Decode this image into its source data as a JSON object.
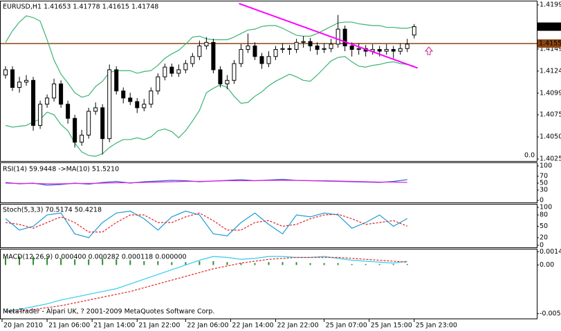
{
  "chart_data": [
    {
      "type": "candlestick",
      "title": "EURUSD,H1  1.41653 1.41778 1.41615 1.41748",
      "xlim": [
        -0.8,
        76.7
      ],
      "xticks": [
        {
          "value": -0.5,
          "label": "20 Jan 2010"
        },
        {
          "value": 6,
          "label": "21 Jan 06:00"
        },
        {
          "value": 12.5,
          "label": "21 Jan 14:00"
        },
        {
          "value": 19,
          "label": "21 Jan 22:00"
        },
        {
          "value": 26,
          "label": "22 Jan 06:00"
        },
        {
          "value": 32.5,
          "label": "22 Jan 14:00"
        },
        {
          "value": 39,
          "label": "22 Jan 22:00"
        },
        {
          "value": 46,
          "label": "25 Jan 07:00"
        },
        {
          "value": 52.5,
          "label": "25 Jan 15:00"
        },
        {
          "value": 59,
          "label": "25 Jan 23:00"
        }
      ],
      "ylim": [
        1.40227,
        1.42034
      ],
      "yticks": [
        1.41995,
        1.41495,
        1.41245,
        1.40995,
        {
          "value": 1.4075,
          "label": "1.40750"
        },
        {
          "value": 1.405,
          "label": "1.40500"
        },
        {
          "value": 1.4025,
          "label": "1.40250"
        }
      ],
      "open": [
        1.412,
        1.4126,
        1.4106,
        1.4112,
        1.4114,
        1.4063,
        1.4087,
        1.4094,
        1.411,
        1.4087,
        1.4071,
        1.4044,
        1.4052,
        1.4079,
        1.4083,
        1.4048,
        1.4126,
        1.4102,
        1.4094,
        1.409,
        1.4083,
        1.4087,
        1.4102,
        1.4118,
        1.4129,
        1.4122,
        1.4126,
        1.4133,
        1.4141,
        1.4153,
        1.4157,
        1.4126,
        1.411,
        1.4114,
        1.4133,
        1.4149,
        1.4153,
        1.4141,
        1.4133,
        1.4141,
        1.4149,
        1.415,
        1.4149,
        1.4157,
        1.4158,
        1.4153,
        1.4149,
        1.415,
        1.4155,
        1.4172,
        1.4153,
        1.4149,
        1.415,
        1.4147,
        1.4149,
        1.4147,
        1.4149,
        1.4147,
        1.415,
        1.41653
      ],
      "high": [
        1.413,
        1.413,
        1.4118,
        1.412,
        1.4118,
        1.4091,
        1.4098,
        1.4116,
        1.4114,
        1.4091,
        1.4075,
        1.4058,
        1.4083,
        1.4089,
        1.4087,
        1.4132,
        1.413,
        1.4106,
        1.41,
        1.4094,
        1.4093,
        1.4106,
        1.4122,
        1.4133,
        1.4133,
        1.4132,
        1.4137,
        1.4145,
        1.4159,
        1.4163,
        1.4161,
        1.413,
        1.412,
        1.4137,
        1.4155,
        1.4167,
        1.4157,
        1.4145,
        1.4147,
        1.4153,
        1.4156,
        1.4154,
        1.4161,
        1.4164,
        1.4162,
        1.4157,
        1.4156,
        1.4161,
        1.4188,
        1.4176,
        1.4157,
        1.4156,
        1.4154,
        1.4155,
        1.4153,
        1.4155,
        1.4153,
        1.4156,
        1.4161,
        1.41778
      ],
      "low": [
        1.4116,
        1.4102,
        1.41,
        1.4108,
        1.4057,
        1.4059,
        1.4083,
        1.409,
        1.4083,
        1.4065,
        1.4038,
        1.404,
        1.4048,
        1.4075,
        1.403,
        1.4044,
        1.4098,
        1.4088,
        1.4086,
        1.4077,
        1.4079,
        1.4083,
        1.4098,
        1.4114,
        1.4118,
        1.4118,
        1.4122,
        1.4129,
        1.4137,
        1.4149,
        1.4122,
        1.4106,
        1.4104,
        1.411,
        1.4129,
        1.4145,
        1.4137,
        1.4127,
        1.4129,
        1.4137,
        1.4145,
        1.4143,
        1.4145,
        1.4151,
        1.4147,
        1.4143,
        1.4145,
        1.4146,
        1.4151,
        1.4147,
        1.4141,
        1.4143,
        1.4141,
        1.4143,
        1.4141,
        1.4143,
        1.4139,
        1.4143,
        1.4146,
        1.41615
      ],
      "close": [
        1.4126,
        1.4106,
        1.4112,
        1.4114,
        1.4063,
        1.4087,
        1.4094,
        1.411,
        1.4087,
        1.4071,
        1.4044,
        1.4052,
        1.4079,
        1.4083,
        1.4048,
        1.4126,
        1.4102,
        1.4094,
        1.409,
        1.4083,
        1.4087,
        1.4102,
        1.4118,
        1.4129,
        1.4122,
        1.4126,
        1.4133,
        1.4141,
        1.4153,
        1.4157,
        1.4126,
        1.411,
        1.4114,
        1.4133,
        1.4149,
        1.4153,
        1.4141,
        1.4133,
        1.4141,
        1.4149,
        1.415,
        1.4149,
        1.4157,
        1.4158,
        1.4153,
        1.4149,
        1.415,
        1.4155,
        1.4172,
        1.4153,
        1.4149,
        1.415,
        1.4147,
        1.4149,
        1.4147,
        1.4149,
        1.4147,
        1.415,
        1.4155,
        1.41748
      ],
      "up_color": "#ffffff",
      "down_color": "#000000",
      "series": [
        {
          "color": "#3cb371",
          "values": [
            1.4157,
            1.417,
            1.418,
            1.4187,
            1.4185,
            1.4181,
            1.416,
            1.4137,
            1.4121,
            1.4111,
            1.41,
            1.4095,
            1.4097,
            1.4107,
            1.4113,
            1.4123,
            1.4125,
            1.4125,
            1.4125,
            1.4122,
            1.4124,
            1.4125,
            1.4131,
            1.4139,
            1.4144,
            1.4148,
            1.4155,
            1.4163,
            1.4164,
            1.4161,
            1.416,
            1.416,
            1.416,
            1.4163,
            1.4167,
            1.4171,
            1.4172,
            1.4175,
            1.4176,
            1.4176,
            1.4173,
            1.4169,
            1.4165,
            1.4164,
            1.4164,
            1.4167,
            1.4171,
            1.4175,
            1.4179,
            1.418,
            1.418,
            1.4178,
            1.4177,
            1.4176,
            1.4176,
            1.4174,
            1.4174,
            1.4173,
            1.4173,
            1.4175
          ]
        },
        {
          "color": "#3cb371",
          "values": [
            1.4063,
            1.4061,
            1.4062,
            1.4063,
            1.4067,
            1.407,
            1.4078,
            1.4075,
            1.4064,
            1.4057,
            1.4043,
            1.4033,
            1.4029,
            1.4028,
            1.4031,
            1.4038,
            1.4043,
            1.4047,
            1.4047,
            1.4049,
            1.4047,
            1.405,
            1.4057,
            1.4059,
            1.4056,
            1.4049,
            1.4057,
            1.4068,
            1.408,
            1.41,
            1.4105,
            1.4109,
            1.4106,
            1.4096,
            1.4088,
            1.4089,
            1.4096,
            1.4101,
            1.4108,
            1.4113,
            1.4117,
            1.4121,
            1.4118,
            1.4114,
            1.4113,
            1.412,
            1.4128,
            1.4136,
            1.414,
            1.4141,
            1.4135,
            1.413,
            1.4129,
            1.4131,
            1.4132,
            1.4134,
            1.4135,
            1.4133,
            1.4132,
            1.413
          ]
        }
      ],
      "trendline": {
        "x": [
          33.7,
          59.5
        ],
        "y": [
          1.4201,
          1.4128
        ],
        "color": "#ff00ff"
      },
      "hline": 1.41557,
      "hline_color": "#8b4513",
      "last_price": 1.41748,
      "volume_label": "0.0"
    },
    {
      "type": "line",
      "title": "RSI(14) 59.9448  ->MA(10) 51.5210",
      "x": [
        0,
        2,
        4,
        6,
        8,
        10,
        12,
        14,
        16,
        18,
        20,
        22,
        24,
        26,
        28,
        30,
        32,
        34,
        36,
        38,
        40,
        42,
        44,
        46,
        48,
        50,
        52,
        54,
        56,
        58
      ],
      "ylim": [
        -8,
        108
      ],
      "yticks": [
        100,
        70,
        50,
        30,
        0
      ],
      "series": [
        {
          "color": "#3366cc",
          "values": [
            52,
            48,
            50,
            44,
            46,
            50,
            47,
            52,
            55,
            50,
            54,
            56,
            58,
            57,
            54,
            56,
            58,
            60,
            57,
            59,
            61,
            58,
            57,
            56,
            55,
            54,
            53,
            52,
            55,
            60
          ]
        },
        {
          "color": "#e020e0",
          "values": [
            50,
            49,
            49,
            48,
            48,
            49,
            49,
            50,
            51,
            51,
            52,
            53,
            54,
            55,
            55,
            56,
            57,
            57,
            57,
            58,
            58,
            58,
            57,
            57,
            56,
            55,
            54,
            53,
            53,
            52
          ]
        }
      ]
    },
    {
      "type": "line",
      "title": "Stoch(5,3,3) 70.5174 50.4218",
      "x": [
        0,
        2,
        4,
        6,
        8,
        10,
        12,
        14,
        16,
        18,
        20,
        22,
        24,
        26,
        28,
        30,
        32,
        34,
        36,
        38,
        40,
        42,
        44,
        46,
        48,
        50,
        52,
        54,
        56,
        58
      ],
      "ylim": [
        -7.4,
        107.4
      ],
      "yticks": [
        100,
        80,
        50,
        20,
        0
      ],
      "series": [
        {
          "color": "#1e9bd7",
          "values": [
            70,
            40,
            50,
            80,
            85,
            30,
            20,
            60,
            85,
            90,
            70,
            40,
            75,
            90,
            80,
            30,
            25,
            60,
            85,
            55,
            30,
            80,
            75,
            85,
            80,
            45,
            60,
            80,
            50,
            70.5
          ]
        },
        {
          "color": "#e02020",
          "dash": true,
          "values": [
            60,
            55,
            45,
            60,
            75,
            60,
            35,
            35,
            60,
            80,
            80,
            60,
            60,
            75,
            85,
            65,
            40,
            40,
            60,
            65,
            50,
            55,
            70,
            80,
            82,
            70,
            55,
            60,
            65,
            50.4
          ]
        }
      ]
    },
    {
      "type": "macd",
      "title": "MACD(12,26,9) 0.000400 0.000282 0.000118 0.000000",
      "x": [
        0,
        2,
        4,
        6,
        8,
        10,
        12,
        14,
        16,
        18,
        20,
        22,
        24,
        26,
        28,
        30,
        32,
        34,
        36,
        38,
        40,
        42,
        44,
        46,
        48,
        50,
        52,
        54,
        56,
        58
      ],
      "ylim": [
        -0.00573,
        0.00164
      ],
      "yticks": [
        {
          "value": 0.0014,
          "label": "0.00140"
        },
        {
          "value": 0,
          "label": "0.00"
        },
        {
          "value": -0.00513,
          "label": "-0.00513"
        }
      ],
      "histogram": {
        "color": "#2e8b2e",
        "values": [
          0.0008,
          0.0009,
          0.0009,
          0.0008,
          0.0007,
          0.0006,
          0.0006,
          0.0007,
          0.0006,
          0.0005,
          0.0004,
          0.0004,
          0.0003,
          0.0003,
          0.0004,
          0.0004,
          0.0003,
          0.0002,
          0.0002,
          0.0003,
          0.0003,
          0.0003,
          0.0002,
          0.0002,
          0.0002,
          0.0001,
          0.0001,
          0.0001,
          0.0001,
          0.0001
        ]
      },
      "series": [
        {
          "color": "#33ccee",
          "values": [
            -0.0049,
            -0.0047,
            -0.0044,
            -0.0041,
            -0.0037,
            -0.0034,
            -0.0031,
            -0.0028,
            -0.0025,
            -0.002,
            -0.0015,
            -0.001,
            -0.0005,
            0,
            0.0005,
            0.0009,
            0.0008,
            0.0006,
            0.0007,
            0.0009,
            0.0009,
            0.0008,
            0.0008,
            0.0009,
            0.0007,
            0.0005,
            0.0004,
            0.0003,
            0.0002,
            0.0004
          ]
        },
        {
          "color": "#e02020",
          "dash": true,
          "values": [
            -0.005,
            -0.0049,
            -0.0047,
            -0.0045,
            -0.0043,
            -0.004,
            -0.0037,
            -0.0034,
            -0.0031,
            -0.0028,
            -0.0024,
            -0.002,
            -0.0016,
            -0.0012,
            -0.0008,
            -0.0004,
            -0.0001,
            0.0002,
            0.0004,
            0.0006,
            0.0007,
            0.0008,
            0.0008,
            0.0008,
            0.0008,
            0.0007,
            0.0006,
            0.0005,
            0.0004,
            0.0003
          ]
        }
      ]
    }
  ],
  "footer": "MetaTrader - Alpari UK, ? 2001-2009 MetaQuotes Software Corp."
}
